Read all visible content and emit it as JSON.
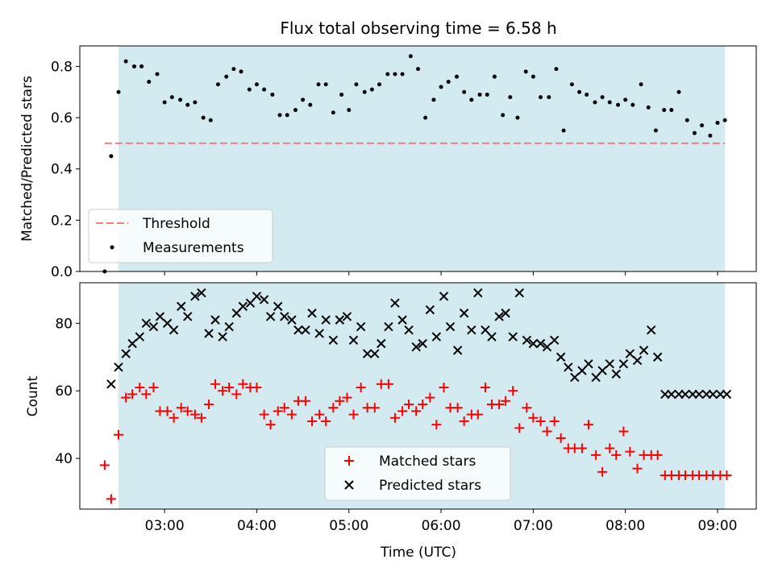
{
  "chart_data": [
    {
      "type": "scatter",
      "title": "Flux total observing time = 6.58 h",
      "ylabel": "Matched/Predicted stars",
      "ylim": [
        0,
        0.88
      ],
      "xlim": [
        2.08,
        9.42
      ],
      "y_ticks": [
        0.0,
        0.2,
        0.4,
        0.6,
        0.8
      ],
      "y_tick_labels": [
        "0.0",
        "0.2",
        "0.4",
        "0.6",
        "0.8"
      ],
      "span": [
        2.5,
        9.08
      ],
      "threshold": {
        "name": "Threshold",
        "y": 0.5,
        "x": [
          2.35,
          9.08
        ],
        "color": "#f08080"
      },
      "measurements": {
        "name": "Measurements",
        "color": "#000000",
        "x": [
          2.35,
          2.42,
          2.5,
          2.58,
          2.67,
          2.75,
          2.83,
          2.92,
          3.0,
          3.08,
          3.17,
          3.25,
          3.33,
          3.42,
          3.5,
          3.58,
          3.67,
          3.75,
          3.83,
          3.92,
          4.0,
          4.08,
          4.17,
          4.25,
          4.33,
          4.42,
          4.5,
          4.58,
          4.67,
          4.75,
          4.83,
          4.92,
          5.0,
          5.08,
          5.17,
          5.25,
          5.33,
          5.42,
          5.5,
          5.58,
          5.67,
          5.75,
          5.83,
          5.92,
          6.0,
          6.08,
          6.17,
          6.25,
          6.33,
          6.42,
          6.5,
          6.58,
          6.67,
          6.75,
          6.83,
          6.92,
          7.0,
          7.08,
          7.17,
          7.25,
          7.33,
          7.42,
          7.5,
          7.58,
          7.67,
          7.75,
          7.83,
          7.92,
          8.0,
          8.08,
          8.17,
          8.25,
          8.33,
          8.42,
          8.5,
          8.58,
          8.67,
          8.75,
          8.83,
          8.92,
          9.0,
          9.08
        ],
        "y": [
          0.0,
          0.45,
          0.7,
          0.82,
          0.8,
          0.8,
          0.74,
          0.77,
          0.66,
          0.68,
          0.67,
          0.65,
          0.66,
          0.6,
          0.59,
          0.73,
          0.76,
          0.79,
          0.78,
          0.71,
          0.73,
          0.71,
          0.69,
          0.61,
          0.61,
          0.63,
          0.67,
          0.65,
          0.73,
          0.73,
          0.62,
          0.69,
          0.63,
          0.73,
          0.7,
          0.71,
          0.73,
          0.77,
          0.77,
          0.77,
          0.84,
          0.79,
          0.6,
          0.67,
          0.72,
          0.74,
          0.76,
          0.7,
          0.67,
          0.69,
          0.69,
          0.76,
          0.61,
          0.68,
          0.6,
          0.78,
          0.76,
          0.68,
          0.68,
          0.79,
          0.55,
          0.73,
          0.7,
          0.69,
          0.66,
          0.68,
          0.66,
          0.65,
          0.67,
          0.65,
          0.73,
          0.64,
          0.55,
          0.63,
          0.63,
          0.7,
          0.59,
          0.54,
          0.57,
          0.53,
          0.58,
          0.59
        ]
      },
      "legend": {
        "placement": "lower-left",
        "entries": [
          "Threshold",
          "Measurements"
        ]
      }
    },
    {
      "type": "scatter",
      "xlabel": "Time (UTC)",
      "ylabel": "Count",
      "ylim": [
        25,
        92
      ],
      "xlim": [
        2.08,
        9.42
      ],
      "x_ticks": [
        3,
        4,
        5,
        6,
        7,
        8,
        9
      ],
      "x_tick_labels": [
        "03:00",
        "04:00",
        "05:00",
        "06:00",
        "07:00",
        "08:00",
        "09:00"
      ],
      "y_ticks": [
        40,
        60,
        80
      ],
      "y_tick_labels": [
        "40",
        "60",
        "80"
      ],
      "span": [
        2.5,
        9.08
      ],
      "series": [
        {
          "name": "Matched stars",
          "marker": "plus",
          "color": "#ff0000",
          "x": [
            2.35,
            2.42,
            2.5,
            2.58,
            2.65,
            2.73,
            2.8,
            2.88,
            2.95,
            3.03,
            3.1,
            3.18,
            3.25,
            3.33,
            3.4,
            3.48,
            3.55,
            3.63,
            3.7,
            3.78,
            3.85,
            3.93,
            4.0,
            4.08,
            4.15,
            4.23,
            4.3,
            4.38,
            4.45,
            4.53,
            4.6,
            4.68,
            4.75,
            4.83,
            4.9,
            4.98,
            5.05,
            5.13,
            5.2,
            5.28,
            5.35,
            5.43,
            5.5,
            5.58,
            5.65,
            5.73,
            5.8,
            5.88,
            5.95,
            6.03,
            6.1,
            6.18,
            6.25,
            6.33,
            6.4,
            6.48,
            6.55,
            6.63,
            6.7,
            6.78,
            6.85,
            6.93,
            7.0,
            7.08,
            7.15,
            7.23,
            7.3,
            7.38,
            7.45,
            7.53,
            7.6,
            7.68,
            7.75,
            7.83,
            7.9,
            7.98,
            8.05,
            8.13,
            8.2,
            8.28,
            8.35,
            8.43,
            8.5,
            8.58,
            8.65,
            8.73,
            8.8,
            8.88,
            8.95,
            9.03,
            9.1
          ],
          "y": [
            38,
            28,
            47,
            58,
            59,
            61,
            59,
            61,
            54,
            54,
            52,
            55,
            54,
            53,
            52,
            56,
            62,
            60,
            61,
            59,
            62,
            61,
            61,
            53,
            50,
            54,
            55,
            53,
            57,
            57,
            51,
            53,
            51,
            55,
            57,
            58,
            53,
            61,
            55,
            55,
            62,
            62,
            52,
            54,
            56,
            54,
            56,
            58,
            50,
            61,
            55,
            55,
            51,
            53,
            53,
            61,
            56,
            56,
            57,
            60,
            49,
            55,
            52,
            51,
            48,
            51,
            46,
            43,
            43,
            43,
            50,
            41,
            36,
            43,
            41,
            48,
            42,
            37,
            41,
            41,
            41,
            35,
            35,
            35,
            35,
            35,
            35,
            35,
            35,
            35,
            35
          ]
        },
        {
          "name": "Predicted stars",
          "marker": "x",
          "color": "#000000",
          "x": [
            2.42,
            2.5,
            2.58,
            2.65,
            2.73,
            2.8,
            2.88,
            2.95,
            3.03,
            3.1,
            3.18,
            3.25,
            3.33,
            3.4,
            3.48,
            3.55,
            3.63,
            3.7,
            3.78,
            3.85,
            3.93,
            4.0,
            4.08,
            4.15,
            4.23,
            4.3,
            4.38,
            4.45,
            4.53,
            4.6,
            4.68,
            4.75,
            4.83,
            4.9,
            4.98,
            5.05,
            5.13,
            5.2,
            5.28,
            5.35,
            5.43,
            5.5,
            5.58,
            5.65,
            5.73,
            5.8,
            5.88,
            5.95,
            6.03,
            6.1,
            6.18,
            6.25,
            6.33,
            6.4,
            6.48,
            6.55,
            6.63,
            6.7,
            6.78,
            6.85,
            6.93,
            7.0,
            7.08,
            7.15,
            7.23,
            7.3,
            7.38,
            7.45,
            7.53,
            7.6,
            7.68,
            7.75,
            7.83,
            7.9,
            7.98,
            8.05,
            8.13,
            8.2,
            8.28,
            8.35,
            8.43,
            8.5,
            8.58,
            8.65,
            8.73,
            8.8,
            8.88,
            8.95,
            9.03,
            9.1
          ],
          "y": [
            62,
            67,
            71,
            74,
            76,
            80,
            79,
            82,
            80,
            78,
            85,
            82,
            88,
            89,
            77,
            81,
            76,
            79,
            83,
            85,
            86,
            88,
            87,
            82,
            85,
            82,
            81,
            78,
            78,
            83,
            77,
            81,
            75,
            81,
            82,
            75,
            79,
            71,
            71,
            74,
            79,
            86,
            81,
            78,
            73,
            74,
            84,
            76,
            88,
            79,
            72,
            83,
            78,
            89,
            78,
            76,
            82,
            83,
            76,
            89,
            75,
            74,
            74,
            73,
            75,
            70,
            67,
            64,
            66,
            68,
            64,
            66,
            68,
            65,
            68,
            71,
            69,
            72,
            78,
            70,
            59,
            59,
            59,
            59,
            59,
            59,
            59,
            59,
            59,
            59
          ]
        }
      ],
      "legend": {
        "placement": "lower-center",
        "entries": [
          "Matched stars",
          "Predicted stars"
        ]
      }
    }
  ]
}
